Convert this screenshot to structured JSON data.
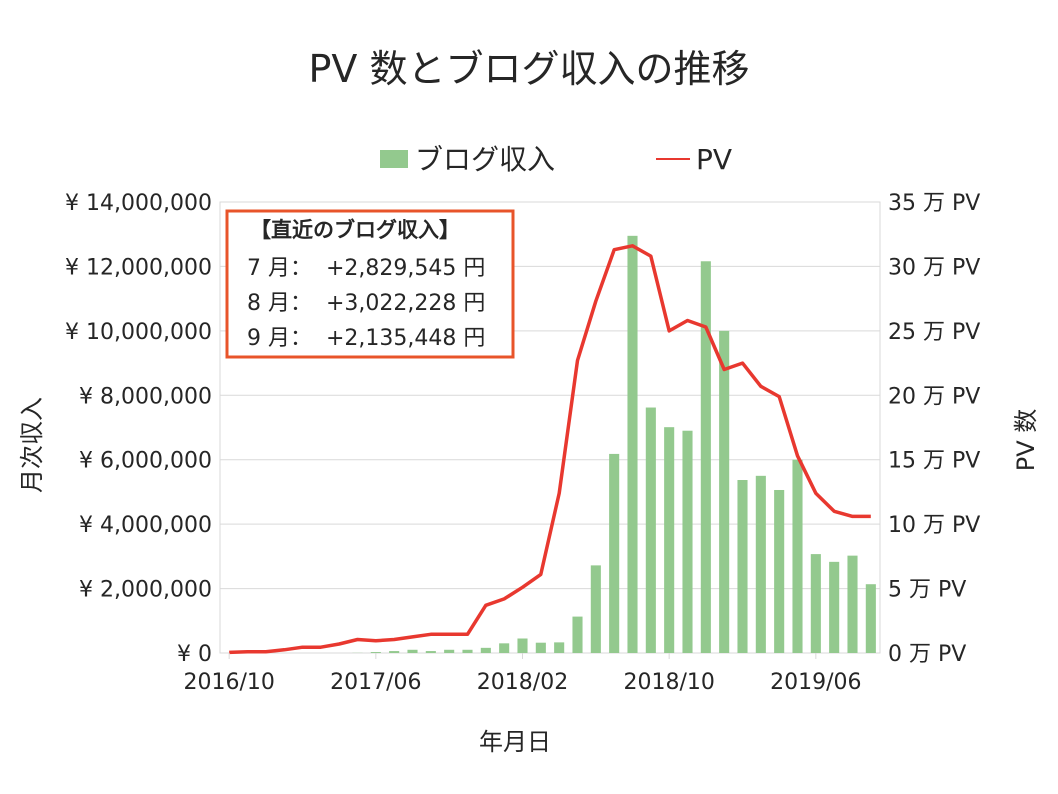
{
  "colors": {
    "bar": "#93c98e",
    "line": "#e8382f",
    "grid": "#d9d9d9",
    "box_border": "#e8542a",
    "text": "#262626"
  },
  "chart_data": {
    "type": "bar",
    "title": "PV 数とブログ収入の推移",
    "xlabel": "年月日",
    "ylabel": "月次収入",
    "y2label": "PV 数",
    "ylim": [
      0,
      14000000
    ],
    "y2lim": [
      0,
      350000
    ],
    "grid": true,
    "legend_position": "top",
    "x_tick_labels": [
      "2016/10",
      "2017/06",
      "2018/02",
      "2018/10",
      "2019/06"
    ],
    "y_tick_labels": [
      "¥ 0",
      "¥ 2,000,000",
      "¥ 4,000,000",
      "¥ 6,000,000",
      "¥ 8,000,000",
      "¥ 10,000,000",
      "¥ 12,000,000",
      "¥ 14,000,000"
    ],
    "y2_tick_labels": [
      "0 万 PV",
      "5 万 PV",
      "10 万 PV",
      "15 万 PV",
      "20 万 PV",
      "25 万 PV",
      "30 万 PV",
      "35 万 PV"
    ],
    "x": [
      "2016/10",
      "2016/11",
      "2016/12",
      "2017/01",
      "2017/02",
      "2017/03",
      "2017/04",
      "2017/05",
      "2017/06",
      "2017/07",
      "2017/08",
      "2017/09",
      "2017/10",
      "2017/11",
      "2017/12",
      "2018/01",
      "2018/02",
      "2018/03",
      "2018/04",
      "2018/05",
      "2018/06",
      "2018/07",
      "2018/08",
      "2018/09",
      "2018/10",
      "2018/11",
      "2018/12",
      "2019/01",
      "2019/02",
      "2019/03",
      "2019/04",
      "2019/05",
      "2019/06",
      "2019/07",
      "2019/08",
      "2019/09"
    ],
    "series": [
      {
        "name": "ブログ収入",
        "type": "bar",
        "axis": "left",
        "values": [
          0,
          0,
          0,
          0,
          0,
          0,
          0,
          5000,
          30000,
          60000,
          100000,
          60000,
          100000,
          100000,
          160000,
          300000,
          450000,
          320000,
          330000,
          1130000,
          2720000,
          6180000,
          12950000,
          7620000,
          7010000,
          6900000,
          12160000,
          10000000,
          5370000,
          5500000,
          5060000,
          6000000,
          3070000,
          2829545,
          3022228,
          2135448
        ]
      },
      {
        "name": "PV",
        "type": "line",
        "axis": "right",
        "values": [
          500,
          1000,
          1000,
          2500,
          4500,
          4500,
          7000,
          10500,
          9500,
          10500,
          12500,
          14500,
          14500,
          14500,
          37000,
          42000,
          51000,
          61000,
          124000,
          227000,
          273000,
          313000,
          316000,
          308000,
          250000,
          258000,
          253000,
          220000,
          225000,
          207000,
          199000,
          153000,
          124000,
          110000,
          106000,
          106000
        ]
      }
    ]
  },
  "info_box": {
    "heading": "【直近のブログ収入】",
    "lines": [
      "7 月：  +2,829,545 円",
      "8 月：  +3,022,228 円",
      "9 月：  +2,135,448 円"
    ]
  }
}
